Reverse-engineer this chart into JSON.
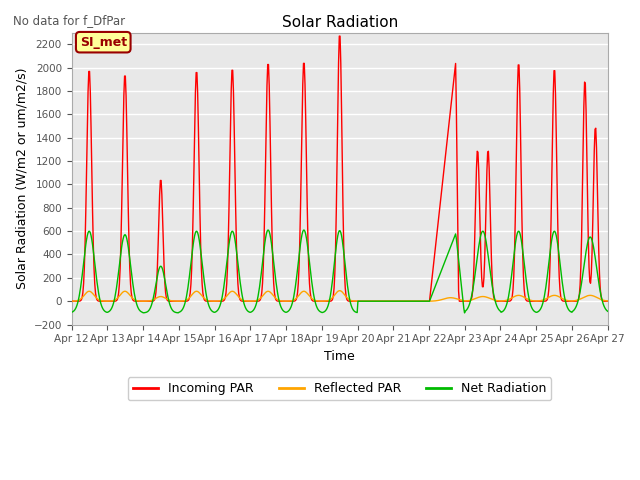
{
  "title": "Solar Radiation",
  "subtitle": "No data for f_DfPar",
  "xlabel": "Time",
  "ylabel": "Solar Radiation (W/m2 or um/m2/s)",
  "ylim": [
    -200,
    2300
  ],
  "yticks": [
    -200,
    0,
    200,
    400,
    600,
    800,
    1000,
    1200,
    1400,
    1600,
    1800,
    2000,
    2200
  ],
  "date_labels": [
    "Apr 12",
    "Apr 13",
    "Apr 14",
    "Apr 15",
    "Apr 16",
    "Apr 17",
    "Apr 18",
    "Apr 19",
    "Apr 20",
    "Apr 21",
    "Apr 22",
    "Apr 23",
    "Apr 24",
    "Apr 25",
    "Apr 26",
    "Apr 27"
  ],
  "legend_entries": [
    "Incoming PAR",
    "Reflected PAR",
    "Net Radiation"
  ],
  "legend_colors": [
    "#ff0000",
    "#ffa500",
    "#00bb00"
  ],
  "fig_facecolor": "#ffffff",
  "ax_facecolor": "#e8e8e8",
  "grid_color": "#ffffff",
  "annotation_box": {
    "text": "SI_met",
    "facecolor": "#ffff99",
    "edgecolor": "#990000",
    "textcolor": "#990000"
  },
  "subtitle_color": "#555555",
  "tick_color": "#555555",
  "spine_color": "#aaaaaa"
}
